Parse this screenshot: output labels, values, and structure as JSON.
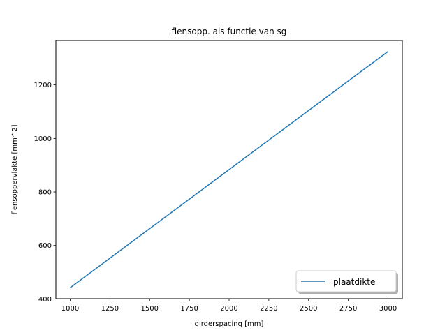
{
  "chart_data": {
    "type": "line",
    "title": "flensopp. als functie van sg",
    "xlabel": "girderspacing [mm]",
    "ylabel": "flensoppervlakte [mm^2]",
    "xlim": [
      910,
      3090
    ],
    "ylim": [
      401,
      1366
    ],
    "x_ticks": [
      1000,
      1250,
      1500,
      1750,
      2000,
      2250,
      2500,
      2750,
      3000
    ],
    "y_ticks": [
      400,
      600,
      800,
      1000,
      1200
    ],
    "grid": false,
    "legend_position": "lower-right",
    "series": [
      {
        "name": "plaatdikte",
        "color": "#1f77b4",
        "x": [
          1000,
          3000
        ],
        "y": [
          442,
          1325
        ]
      }
    ]
  }
}
